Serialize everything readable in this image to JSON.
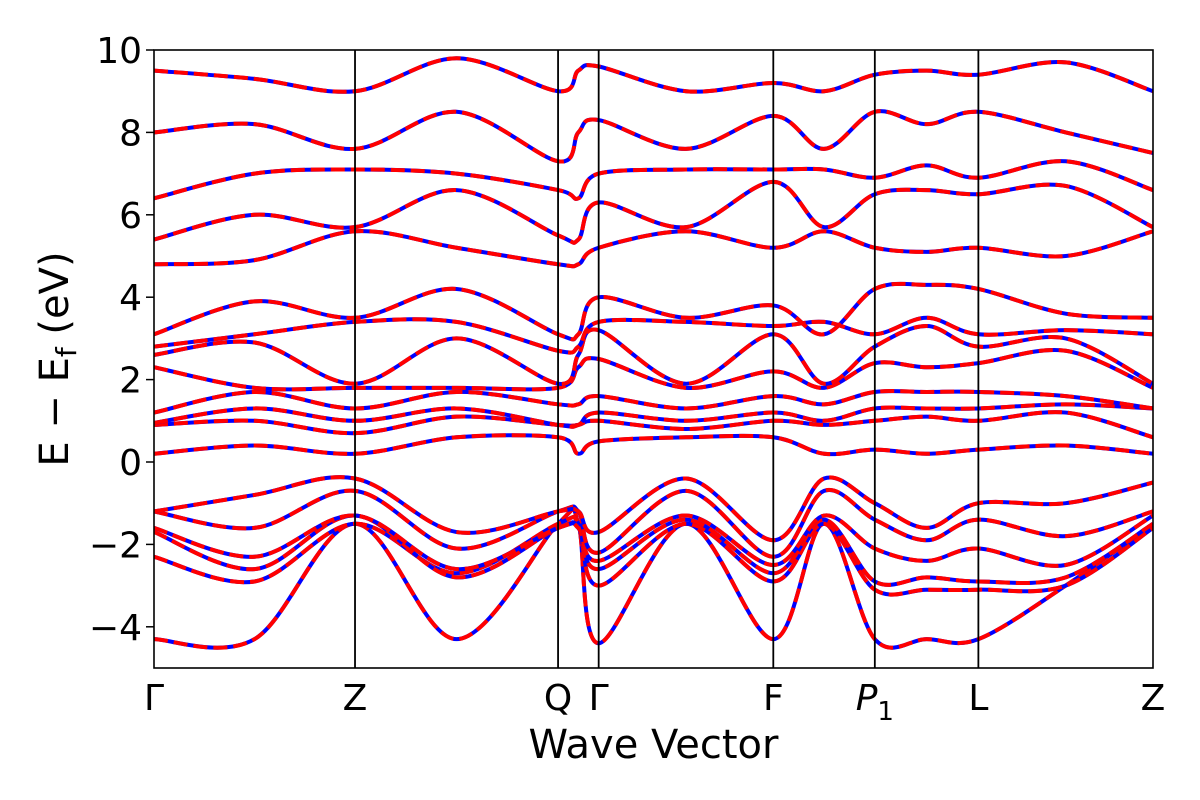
{
  "chart_data": {
    "type": "line",
    "title": "",
    "xlabel": "Wave Vector",
    "ylabel": "E − E_f (eV)",
    "ylabel_parts": {
      "main": "E − E",
      "sub": "f",
      "unit": " (eV)"
    },
    "ylim": [
      -5,
      10
    ],
    "xlim": [
      0,
      4.92
    ],
    "grid": false,
    "legend": "none",
    "y_ticks": [
      -4,
      -2,
      0,
      2,
      4,
      6,
      8,
      10
    ],
    "y_tick_labels": [
      "−4",
      "−2",
      "0",
      "2",
      "4",
      "6",
      "8",
      "10"
    ],
    "k_points": [
      {
        "label": "Γ",
        "x": 0.0,
        "sub": ""
      },
      {
        "label": "Z",
        "x": 0.99,
        "sub": ""
      },
      {
        "label": "Q",
        "x": 1.99,
        "sub": ""
      },
      {
        "label": "Γ",
        "x": 2.19,
        "sub": ""
      },
      {
        "label": "F",
        "x": 3.05,
        "sub": ""
      },
      {
        "label": "P",
        "x": 3.55,
        "sub": "1",
        "italic": true
      },
      {
        "label": "L",
        "x": 4.06,
        "sub": ""
      },
      {
        "label": "Z",
        "x": 4.92,
        "sub": ""
      }
    ],
    "series_style": [
      {
        "role": "primary",
        "color": "#0000ff",
        "dash": "solid"
      },
      {
        "role": "overlay",
        "color": "#ff0000",
        "dash": "dashed"
      }
    ],
    "bands": [
      [
        -4.3,
        -4.3,
        -1.5,
        -4.3,
        -1.5,
        -1.5,
        -4.4,
        -1.5,
        -4.3,
        -1.5,
        -4.3,
        -4.3,
        -4.3,
        -3.0,
        -1.5
      ],
      [
        -2.3,
        -2.9,
        -1.5,
        -2.7,
        -1.5,
        -1.5,
        -3.0,
        -1.5,
        -2.9,
        -1.5,
        -3.1,
        -3.1,
        -3.1,
        -3.0,
        -1.6
      ],
      [
        -1.7,
        -2.6,
        -1.3,
        -2.8,
        -1.6,
        -1.6,
        -2.6,
        -1.4,
        -2.7,
        -1.4,
        -2.9,
        -2.8,
        -2.9,
        -2.8,
        -1.5
      ],
      [
        -1.6,
        -2.3,
        -1.3,
        -2.6,
        -1.6,
        -1.6,
        -2.4,
        -1.3,
        -2.5,
        -1.3,
        -2.1,
        -2.4,
        -2.1,
        -2.5,
        -1.3
      ],
      [
        -1.2,
        -1.6,
        -0.7,
        -2.1,
        -1.2,
        -1.2,
        -2.2,
        -0.7,
        -2.3,
        -0.7,
        -1.4,
        -1.9,
        -1.4,
        -1.8,
        -1.2
      ],
      [
        -1.2,
        -0.8,
        -0.4,
        -1.7,
        -1.2,
        -1.2,
        -1.7,
        -0.4,
        -1.9,
        -0.4,
        -1.0,
        -1.6,
        -1.0,
        -1.0,
        -0.5
      ],
      [
        0.2,
        0.4,
        0.2,
        0.6,
        0.6,
        0.2,
        0.5,
        0.6,
        0.6,
        0.2,
        0.3,
        0.2,
        0.3,
        0.4,
        0.2
      ],
      [
        0.9,
        1.0,
        0.7,
        1.1,
        0.9,
        0.9,
        1.0,
        0.8,
        1.0,
        0.9,
        1.0,
        1.1,
        1.0,
        1.2,
        0.6
      ],
      [
        0.95,
        1.3,
        1.0,
        1.3,
        0.9,
        0.9,
        1.2,
        1.0,
        1.2,
        1.0,
        1.3,
        1.3,
        1.3,
        1.4,
        1.3
      ],
      [
        1.2,
        1.7,
        1.3,
        1.7,
        1.4,
        1.4,
        1.6,
        1.3,
        1.6,
        1.4,
        1.7,
        1.7,
        1.7,
        1.6,
        1.3
      ],
      [
        2.3,
        1.8,
        1.8,
        1.8,
        1.8,
        2.3,
        2.5,
        1.8,
        2.2,
        1.8,
        2.4,
        2.3,
        2.4,
        2.7,
        1.8
      ],
      [
        2.6,
        2.9,
        1.9,
        3.0,
        1.9,
        2.6,
        3.2,
        1.9,
        3.1,
        1.9,
        2.8,
        3.3,
        2.8,
        3.0,
        1.9
      ],
      [
        2.8,
        3.1,
        3.4,
        3.4,
        2.7,
        2.8,
        3.4,
        3.4,
        3.3,
        3.4,
        3.1,
        3.5,
        3.1,
        3.2,
        3.1
      ],
      [
        3.1,
        3.9,
        3.5,
        4.2,
        3.1,
        3.1,
        4.0,
        3.5,
        3.8,
        3.1,
        4.2,
        4.3,
        4.2,
        3.6,
        3.5
      ],
      [
        4.8,
        4.9,
        5.6,
        5.2,
        4.8,
        4.8,
        5.2,
        5.6,
        5.2,
        5.6,
        5.2,
        5.1,
        5.2,
        5.0,
        5.6
      ],
      [
        5.4,
        6.0,
        5.7,
        6.6,
        5.5,
        5.4,
        6.3,
        5.7,
        6.8,
        5.7,
        6.5,
        6.6,
        6.5,
        6.7,
        5.7
      ],
      [
        6.4,
        7.0,
        7.1,
        7.0,
        6.6,
        6.4,
        7.0,
        7.1,
        7.1,
        7.1,
        6.9,
        7.2,
        6.9,
        7.3,
        6.6
      ],
      [
        8.0,
        8.2,
        7.6,
        8.5,
        7.3,
        8.0,
        8.3,
        7.6,
        8.4,
        7.6,
        8.5,
        8.2,
        8.5,
        8.0,
        7.5
      ],
      [
        9.5,
        9.3,
        9.0,
        9.8,
        9.0,
        9.5,
        9.6,
        9.0,
        9.2,
        9.0,
        9.4,
        9.5,
        9.4,
        9.7,
        9.0
      ]
    ]
  }
}
